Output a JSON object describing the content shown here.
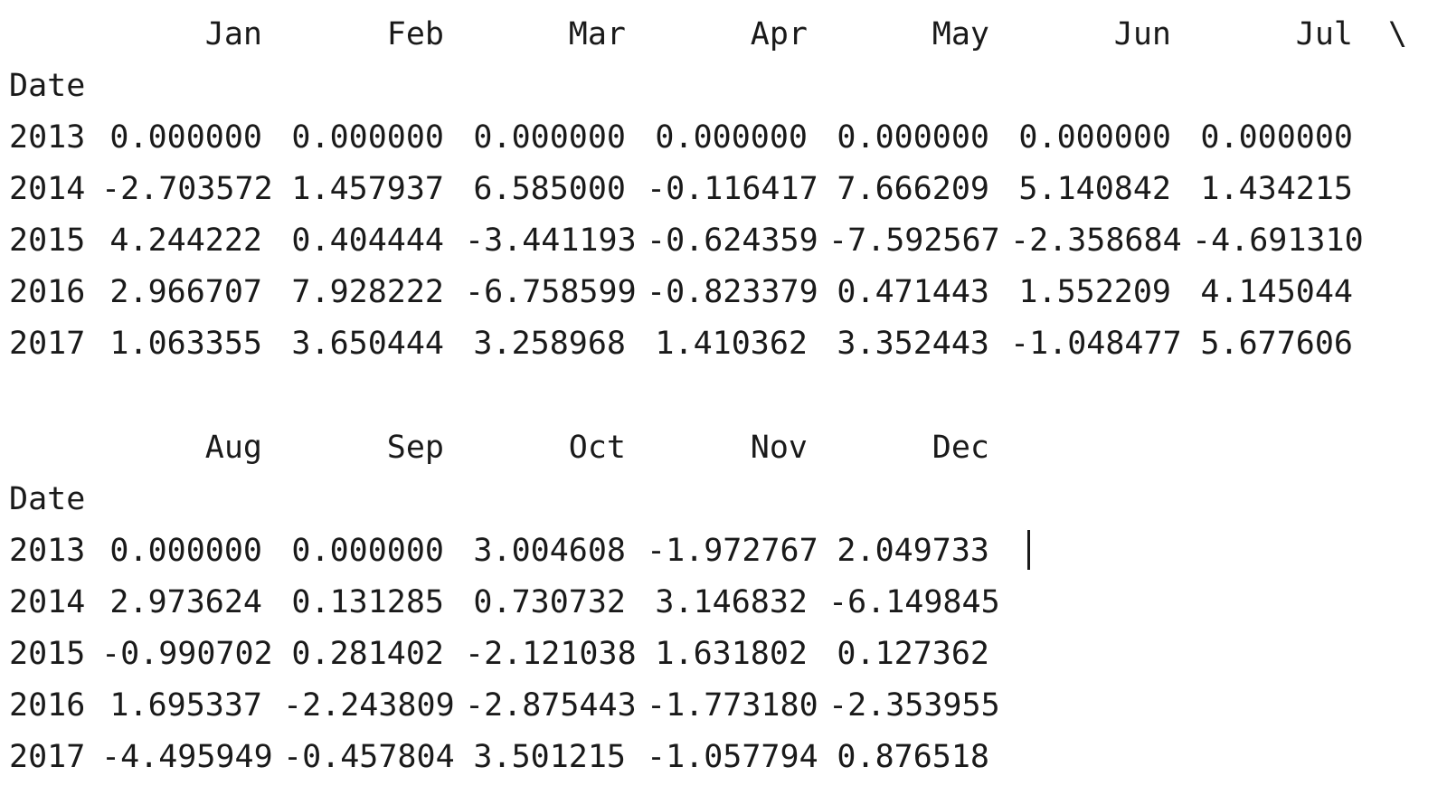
{
  "console": {
    "table_part_1": {
      "columns": [
        "Jan",
        "Feb",
        "Mar",
        "Apr",
        "May",
        "Jun",
        "Jul"
      ],
      "continuation": "\\",
      "index_name": "Date",
      "rows": [
        {
          "index": "2013",
          "values": [
            "0.000000",
            "0.000000",
            "0.000000",
            "0.000000",
            "0.000000",
            "0.000000",
            "0.000000"
          ]
        },
        {
          "index": "2014",
          "values": [
            "-2.703572",
            "1.457937",
            "6.585000",
            "-0.116417",
            "7.666209",
            "5.140842",
            "1.434215"
          ]
        },
        {
          "index": "2015",
          "values": [
            "4.244222",
            "0.404444",
            "-3.441193",
            "-0.624359",
            "-7.592567",
            "-2.358684",
            "-4.691310"
          ]
        },
        {
          "index": "2016",
          "values": [
            "2.966707",
            "7.928222",
            "-6.758599",
            "-0.823379",
            "0.471443",
            "1.552209",
            "4.145044"
          ]
        },
        {
          "index": "2017",
          "values": [
            "1.063355",
            "3.650444",
            "3.258968",
            "1.410362",
            "3.352443",
            "-1.048477",
            "5.677606"
          ]
        }
      ]
    },
    "table_part_2": {
      "columns": [
        "Aug",
        "Sep",
        "Oct",
        "Nov",
        "Dec"
      ],
      "index_name": "Date",
      "rows": [
        {
          "index": "2013",
          "values": [
            "0.000000",
            "0.000000",
            "3.004608",
            "-1.972767",
            "2.049733"
          ]
        },
        {
          "index": "2014",
          "values": [
            "2.973624",
            "0.131285",
            "0.730732",
            "3.146832",
            "-6.149845"
          ]
        },
        {
          "index": "2015",
          "values": [
            "-0.990702",
            "0.281402",
            "-2.121038",
            "1.631802",
            "0.127362"
          ]
        },
        {
          "index": "2016",
          "values": [
            "1.695337",
            "-2.243809",
            "-2.875443",
            "-1.773180",
            "-2.353955"
          ]
        },
        {
          "index": "2017",
          "values": [
            "-4.495949",
            "-0.457804",
            "3.501215",
            "-1.057794",
            "0.876518"
          ]
        }
      ]
    }
  }
}
